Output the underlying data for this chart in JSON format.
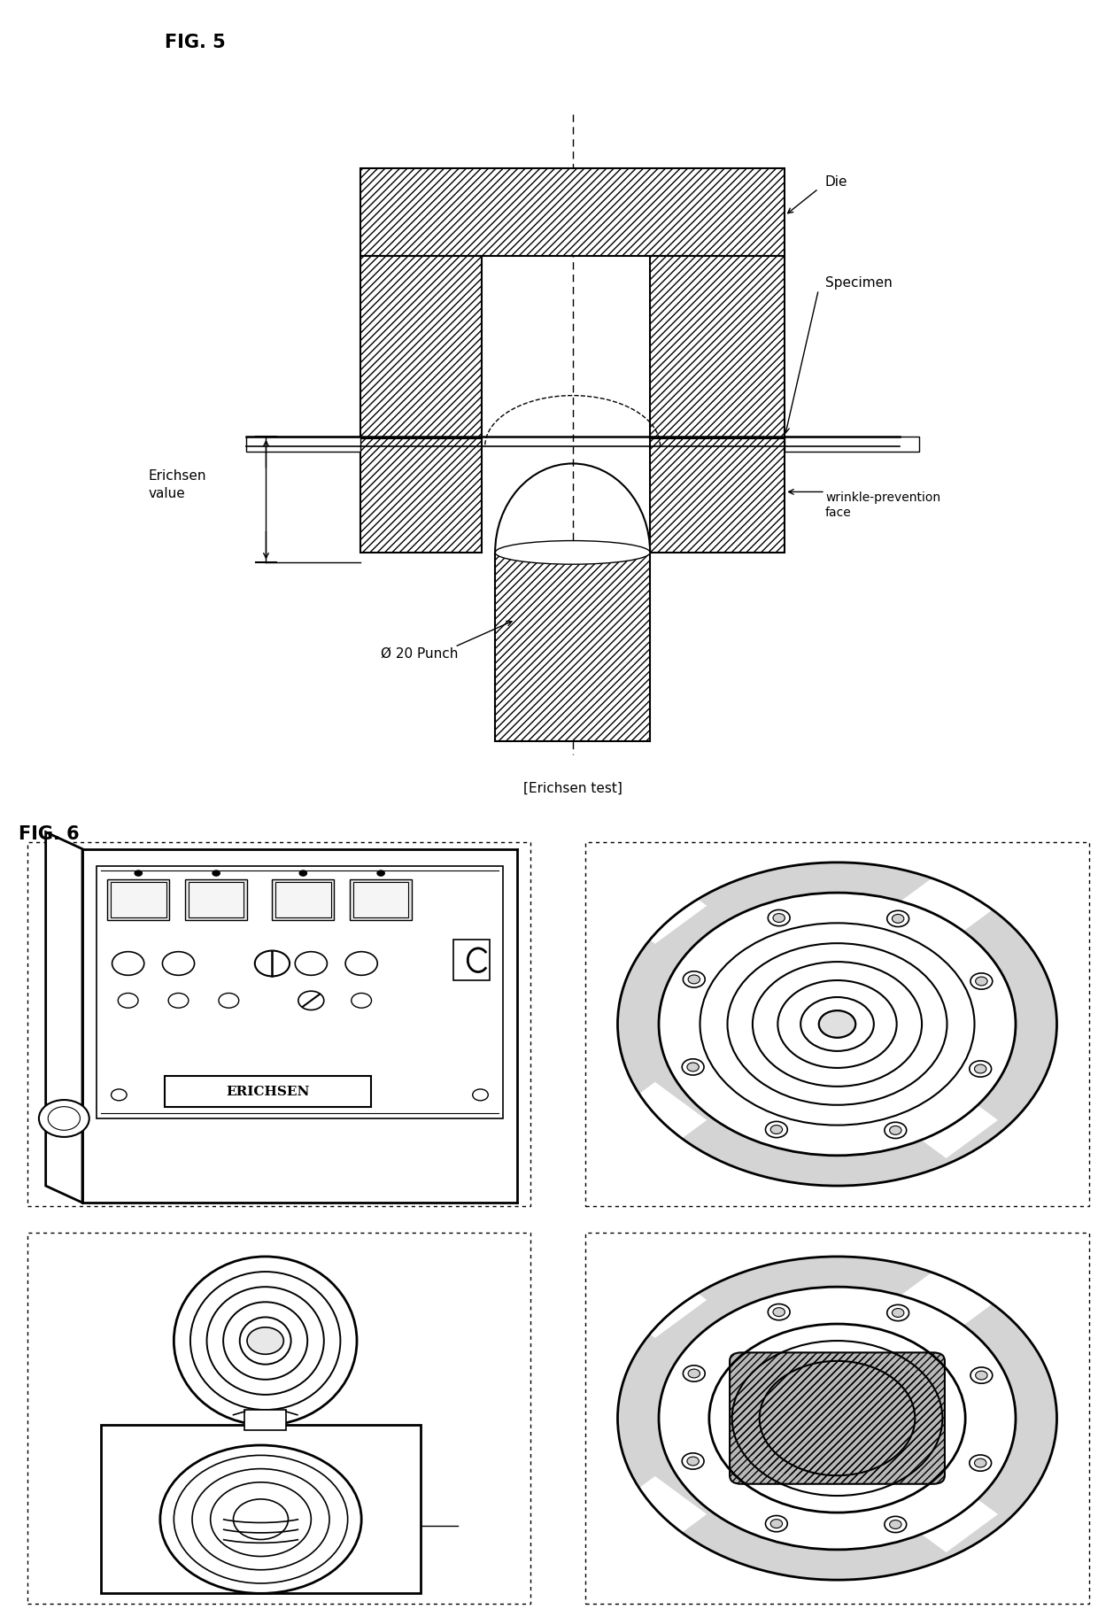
{
  "fig5_label": "FIG. 5",
  "fig6_label": "FIG. 6",
  "die_label": "Die",
  "specimen_label": "Specimen",
  "erichsen_value_label": "Erichsen\nvalue",
  "wrinkle_label": "wrinkle-prevention\nface",
  "punch_label": "Ø 20 Punch",
  "erichsen_test_label": "[Erichsen test]",
  "erichsen_brand": "ERICHSEN",
  "bg_color": "#ffffff",
  "gray_light": "#d4d4d4",
  "gray_medium": "#b8b8b8",
  "gray_dark": "#909090"
}
